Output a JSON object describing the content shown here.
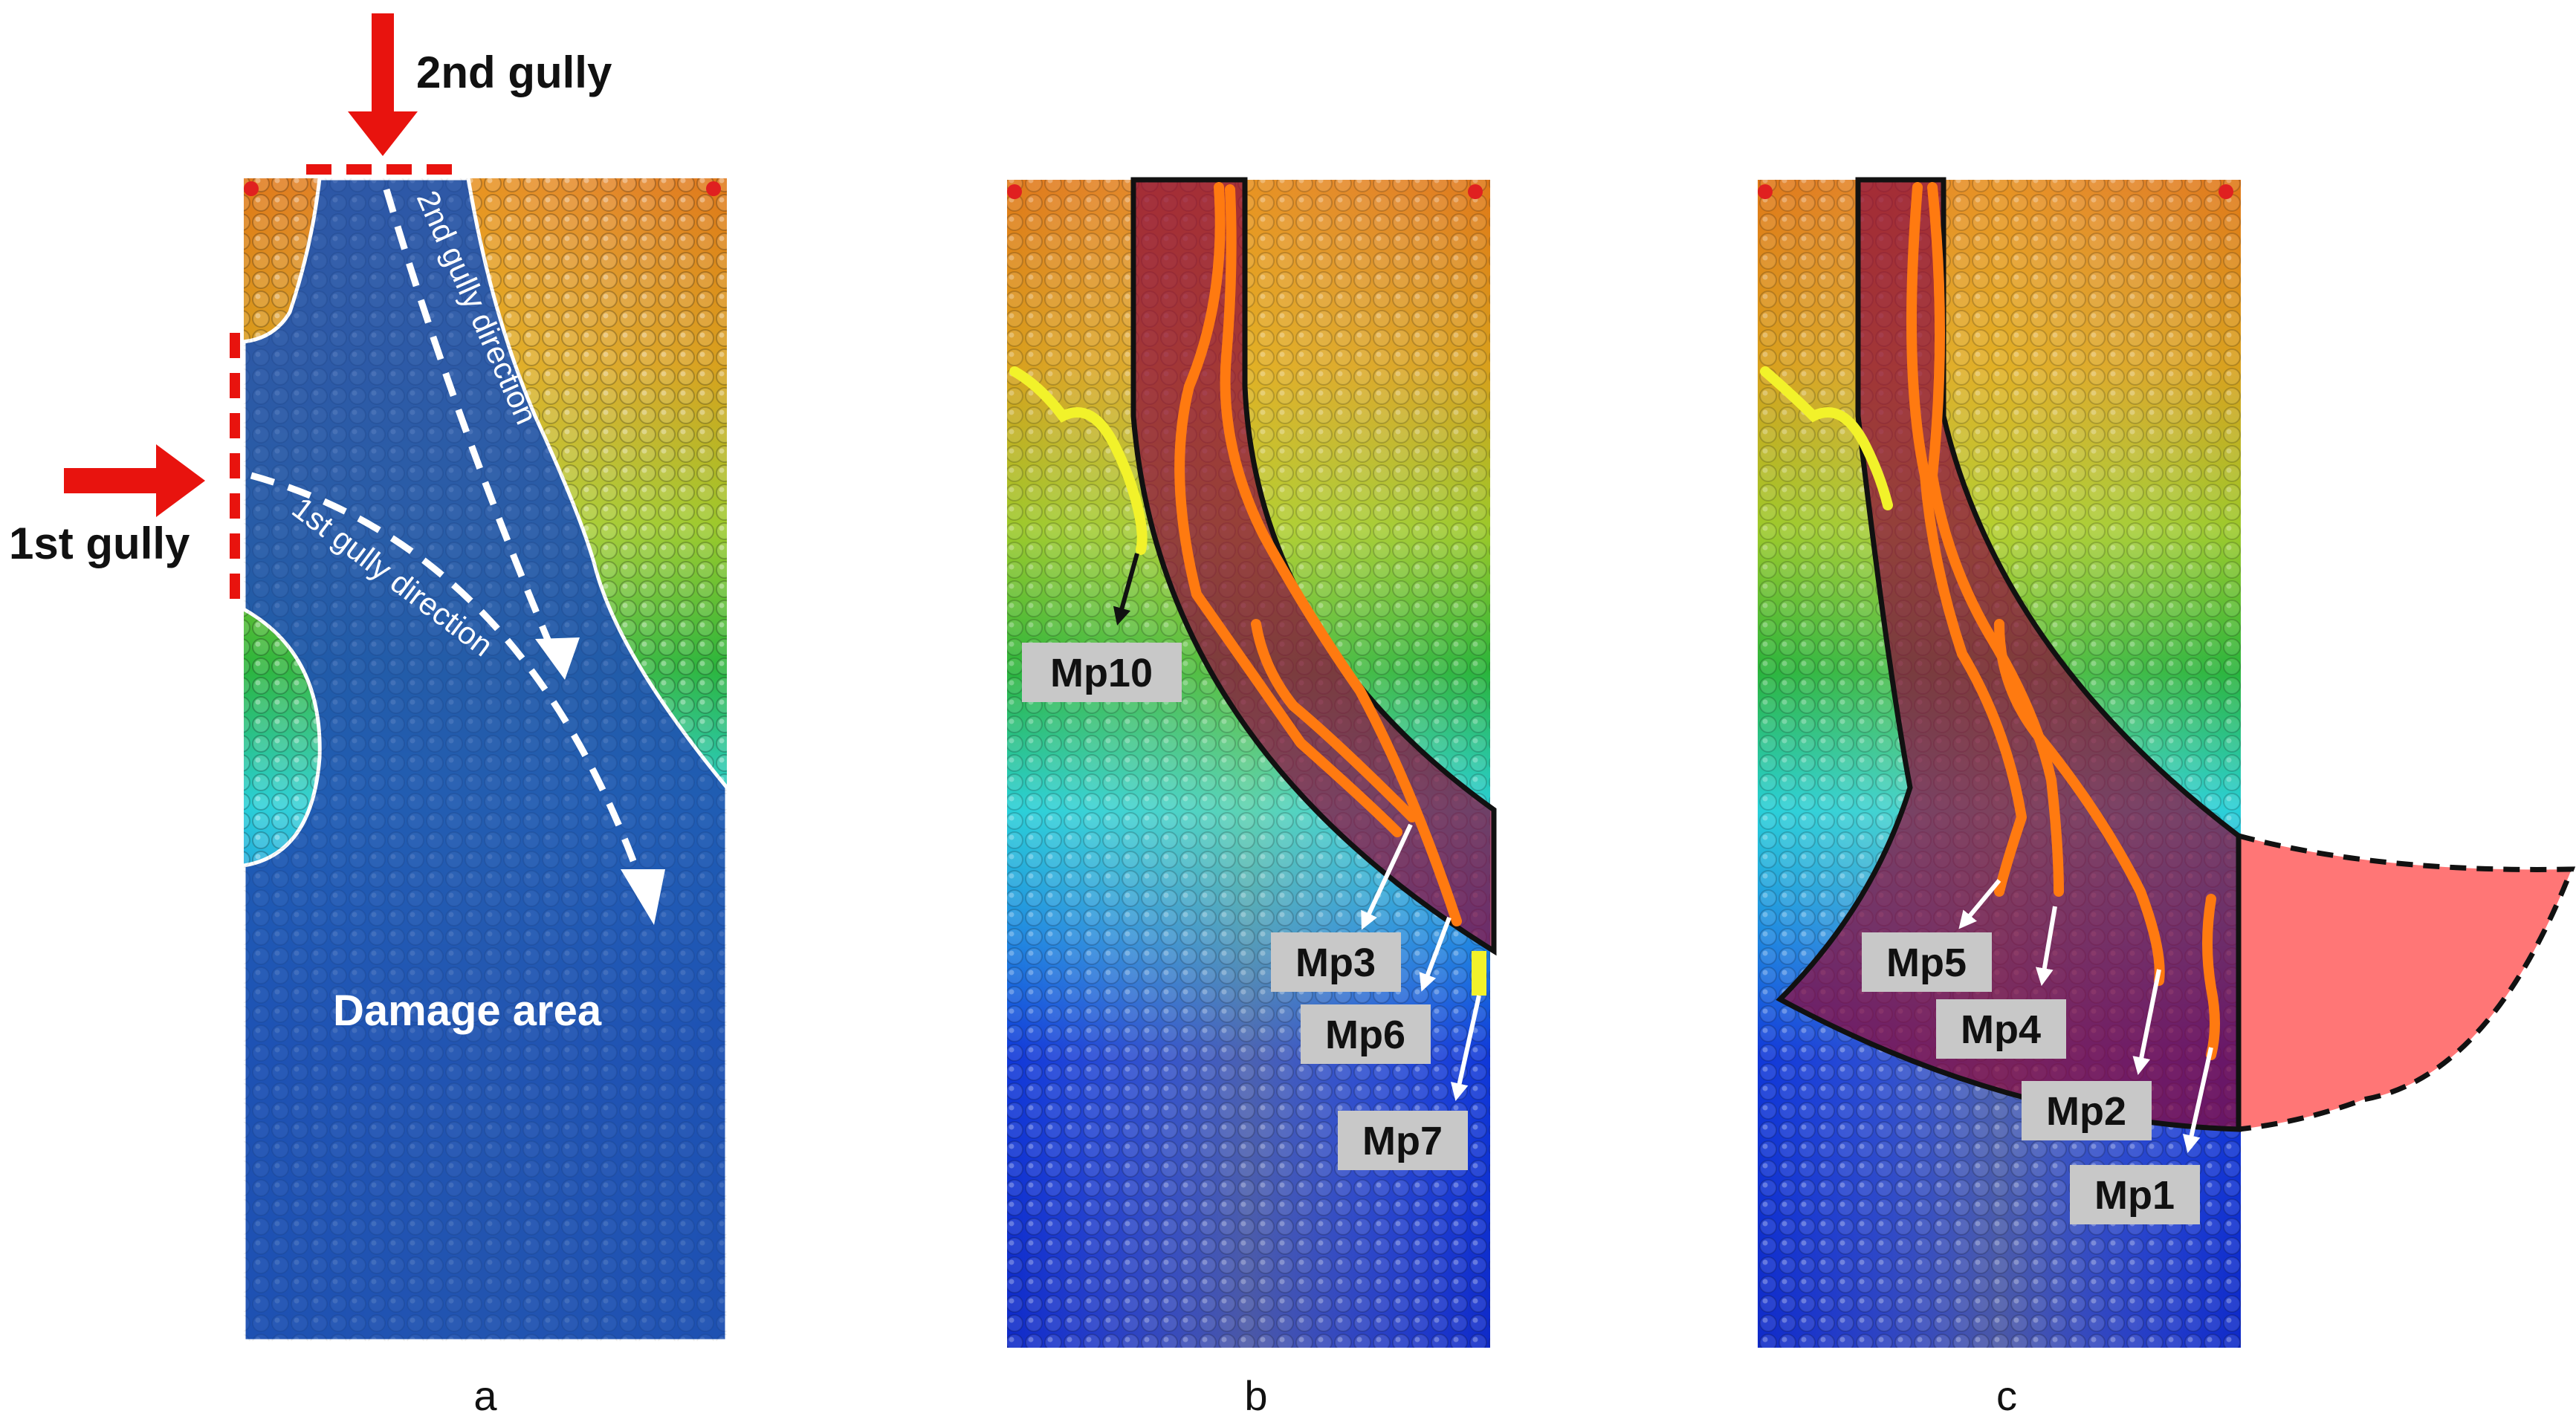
{
  "panels": [
    {
      "id": "a",
      "caption": "a"
    },
    {
      "id": "b",
      "caption": "b"
    },
    {
      "id": "c",
      "caption": "c"
    }
  ],
  "panel_a": {
    "gully_2": "2nd gully",
    "gully_1": "1st gully",
    "dir_2": "2nd gully  direction",
    "dir_1": "1st gully direction",
    "damage": "Damage area"
  },
  "panel_b": {
    "mp10": "Mp10",
    "mp3": "Mp3",
    "mp6": "Mp6",
    "mp7": "Mp7"
  },
  "panel_c": {
    "mp5": "Mp5",
    "mp4": "Mp4",
    "mp2": "Mp2",
    "mp1": "Mp1"
  },
  "colors": {
    "arrow_red": "#e8130e",
    "flow_orange": "#ff7a10",
    "monitor_yellow": "#f2f22a",
    "zone_fill": "#8a0a3c",
    "extension_fill": "#ff6f6f",
    "label_box": "#c8c8c8"
  }
}
